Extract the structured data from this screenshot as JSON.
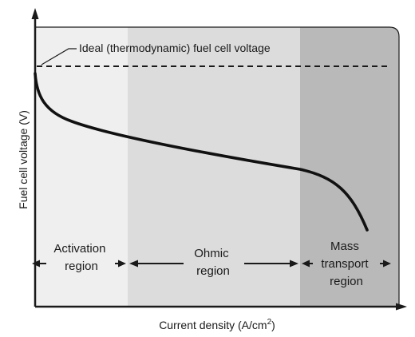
{
  "diagram": {
    "x_axis_label": "Current density (A/cm",
    "x_axis_label_sup": "2",
    "x_axis_label_end": ")",
    "y_axis_label": "Fuel cell voltage (V)",
    "ideal_voltage_label": "Ideal (thermodynamic) fuel cell voltage",
    "regions": [
      {
        "lines": [
          "Activation",
          "region"
        ],
        "shade": "#efefef"
      },
      {
        "lines": [
          "Ohmic",
          "region"
        ],
        "shade": "#dcdcdc"
      },
      {
        "lines": [
          "Mass",
          "transport",
          "region"
        ],
        "shade": "#b9b9b9"
      }
    ]
  }
}
